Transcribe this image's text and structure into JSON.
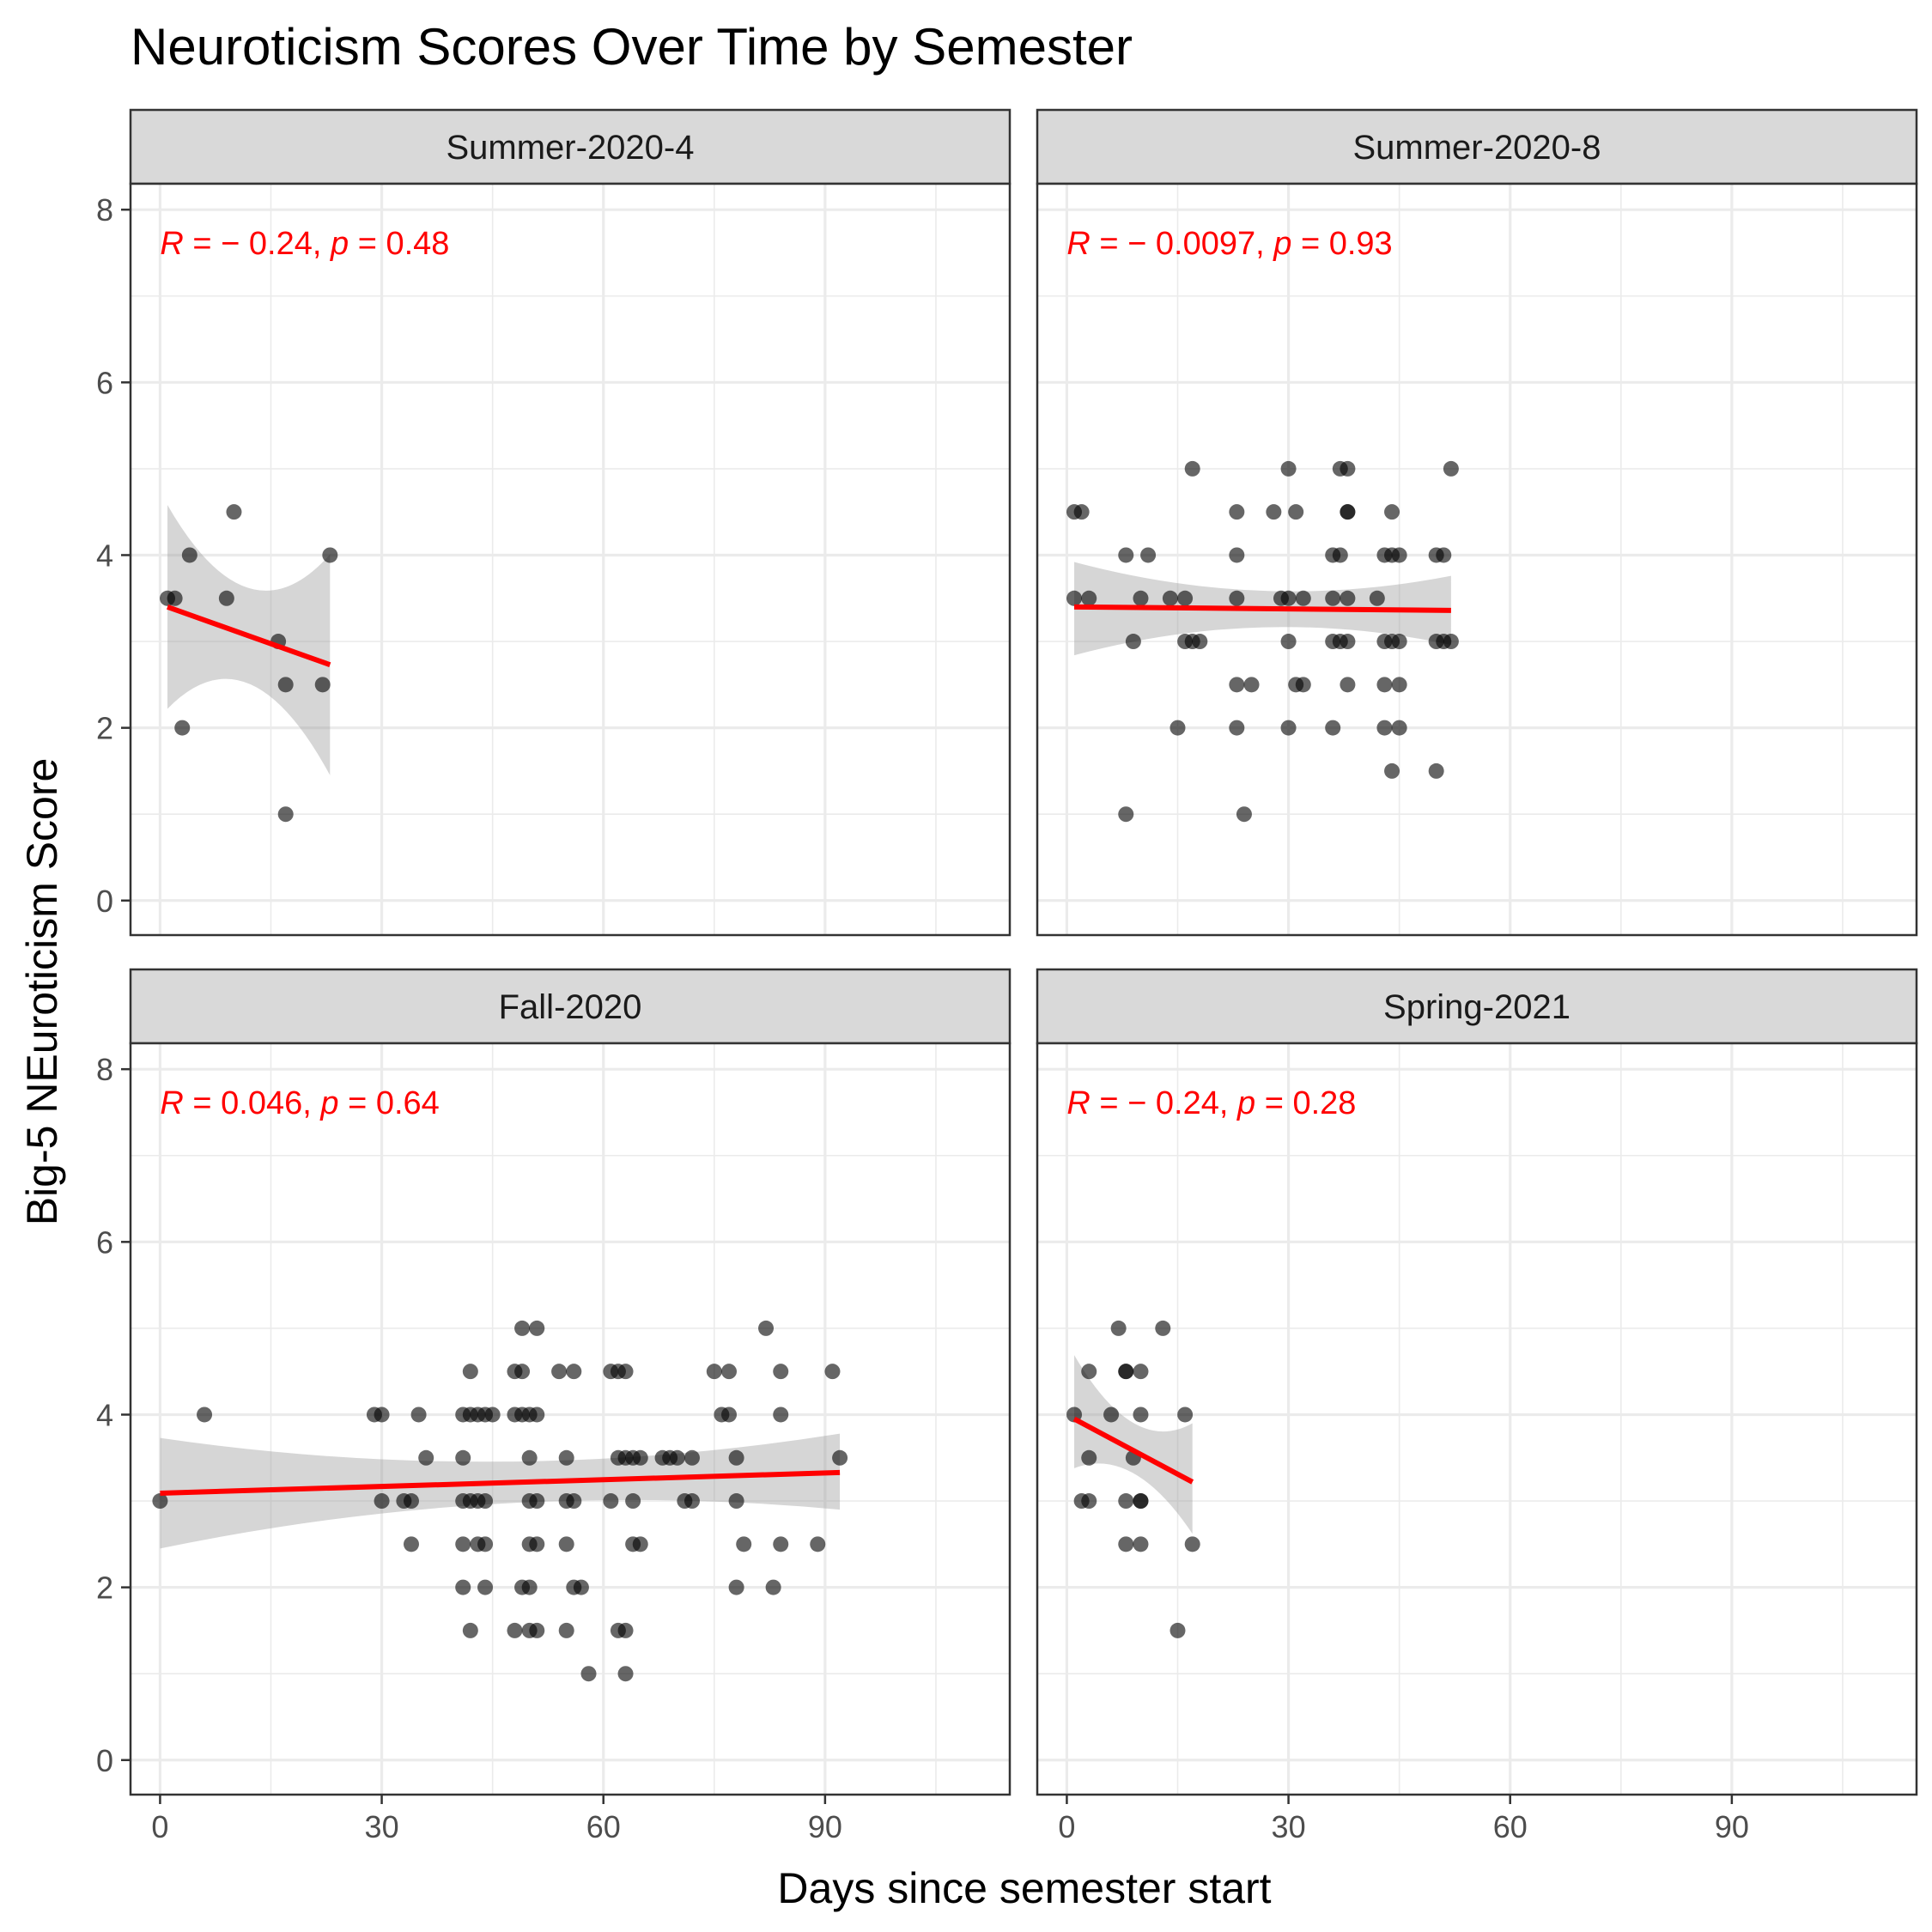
{
  "chart_data": {
    "type": "scatter",
    "title": "Neuroticism Scores Over Time by Semester",
    "xlabel": "Days since semester start",
    "ylabel": "Big-5 NEuroticism Score",
    "xlim": [
      -4,
      115
    ],
    "ylim": [
      -0.4,
      8.3
    ],
    "x_ticks": [
      "0",
      "30",
      "60",
      "90"
    ],
    "y_ticks": [
      "0",
      "2",
      "4",
      "6",
      "8"
    ],
    "grid": true,
    "facets": [
      {
        "name": "Summer-2020-4",
        "stat": {
          "r": "R = − 0.24,",
          "p": "p = 0.48"
        },
        "trend": {
          "x": [
            1,
            23
          ],
          "y": [
            3.4,
            2.73
          ]
        },
        "band": {
          "x": [
            1,
            23
          ],
          "lower": [
            2.22,
            1.45
          ],
          "upper": [
            4.58,
            4.01
          ]
        },
        "points": [
          [
            1,
            3.5
          ],
          [
            2,
            3.5
          ],
          [
            3,
            2
          ],
          [
            4,
            4
          ],
          [
            9,
            3.5
          ],
          [
            10,
            4.5
          ],
          [
            16,
            3
          ],
          [
            17,
            2.5
          ],
          [
            17,
            1
          ],
          [
            22,
            2.5
          ],
          [
            23,
            4
          ]
        ]
      },
      {
        "name": "Summer-2020-8",
        "stat": {
          "r": "R = − 0.0097,",
          "p": "p = 0.93"
        },
        "trend": {
          "x": [
            1,
            52
          ],
          "y": [
            3.4,
            3.36
          ]
        },
        "band": {
          "x": [
            1,
            52
          ],
          "lower": [
            2.84,
            2.96
          ],
          "upper": [
            3.92,
            3.76
          ]
        },
        "points": [
          [
            1,
            4.5
          ],
          [
            2,
            4.5
          ],
          [
            1,
            3.5
          ],
          [
            3,
            3.5
          ],
          [
            8,
            4
          ],
          [
            11,
            4
          ],
          [
            9,
            3
          ],
          [
            10,
            3.5
          ],
          [
            8,
            1
          ],
          [
            14,
            3.5
          ],
          [
            16,
            3.5
          ],
          [
            16,
            3
          ],
          [
            17,
            3
          ],
          [
            18,
            3
          ],
          [
            15,
            2
          ],
          [
            17,
            5
          ],
          [
            23,
            4.5
          ],
          [
            23,
            4
          ],
          [
            23,
            3.5
          ],
          [
            23,
            2.5
          ],
          [
            23,
            2
          ],
          [
            24,
            1
          ],
          [
            25,
            2.5
          ],
          [
            28,
            4.5
          ],
          [
            29,
            3.5
          ],
          [
            30,
            3.5
          ],
          [
            30,
            3
          ],
          [
            30,
            2
          ],
          [
            30,
            5
          ],
          [
            31,
            4.5
          ],
          [
            31,
            2.5
          ],
          [
            32,
            2.5
          ],
          [
            32,
            3.5
          ],
          [
            36,
            4
          ],
          [
            36,
            3.5
          ],
          [
            36,
            3
          ],
          [
            37,
            3
          ],
          [
            37,
            4
          ],
          [
            38,
            3.5
          ],
          [
            37,
            5
          ],
          [
            38,
            5
          ],
          [
            38,
            4.5
          ],
          [
            38,
            4.5
          ],
          [
            38,
            3
          ],
          [
            38,
            2.5
          ],
          [
            36,
            2
          ],
          [
            42,
            3.5
          ],
          [
            43,
            4
          ],
          [
            44,
            4
          ],
          [
            45,
            4
          ],
          [
            44,
            4.5
          ],
          [
            43,
            3
          ],
          [
            44,
            3
          ],
          [
            45,
            3
          ],
          [
            43,
            2.5
          ],
          [
            45,
            2.5
          ],
          [
            43,
            2
          ],
          [
            45,
            2
          ],
          [
            44,
            1.5
          ],
          [
            50,
            4
          ],
          [
            51,
            4
          ],
          [
            50,
            3
          ],
          [
            51,
            3
          ],
          [
            52,
            3
          ],
          [
            50,
            1.5
          ],
          [
            52,
            5
          ]
        ]
      },
      {
        "name": "Fall-2020",
        "stat": {
          "r": "R = 0.046,",
          "p": "p = 0.64"
        },
        "trend": {
          "x": [
            0,
            92
          ],
          "y": [
            3.09,
            3.33
          ]
        },
        "band": {
          "x": [
            0,
            92
          ],
          "lower": [
            2.45,
            2.9
          ],
          "upper": [
            3.73,
            3.78
          ]
        },
        "points": [
          [
            0,
            3
          ],
          [
            6,
            4
          ],
          [
            29,
            4
          ],
          [
            30,
            4
          ],
          [
            30,
            3
          ],
          [
            33,
            3
          ],
          [
            34,
            3
          ],
          [
            35,
            4
          ],
          [
            36,
            3.5
          ],
          [
            34,
            2.5
          ],
          [
            41,
            4
          ],
          [
            42,
            4
          ],
          [
            43,
            4
          ],
          [
            44,
            4
          ],
          [
            45,
            4
          ],
          [
            41,
            3.5
          ],
          [
            41,
            3
          ],
          [
            42,
            3
          ],
          [
            43,
            3
          ],
          [
            44,
            3
          ],
          [
            42,
            4.5
          ],
          [
            41,
            2.5
          ],
          [
            43,
            2.5
          ],
          [
            44,
            2.5
          ],
          [
            41,
            2
          ],
          [
            44,
            2
          ],
          [
            42,
            1.5
          ],
          [
            48,
            4.5
          ],
          [
            49,
            4.5
          ],
          [
            48,
            4
          ],
          [
            49,
            4
          ],
          [
            50,
            4
          ],
          [
            51,
            4
          ],
          [
            49,
            5
          ],
          [
            51,
            5
          ],
          [
            50,
            3.5
          ],
          [
            50,
            3
          ],
          [
            51,
            3
          ],
          [
            50,
            2.5
          ],
          [
            51,
            2.5
          ],
          [
            49,
            2
          ],
          [
            50,
            2
          ],
          [
            48,
            1.5
          ],
          [
            50,
            1.5
          ],
          [
            51,
            1.5
          ],
          [
            54,
            4.5
          ],
          [
            56,
            4.5
          ],
          [
            55,
            3.5
          ],
          [
            55,
            3
          ],
          [
            56,
            3
          ],
          [
            55,
            2.5
          ],
          [
            56,
            2
          ],
          [
            57,
            2
          ],
          [
            55,
            1.5
          ],
          [
            58,
            1
          ],
          [
            61,
            4.5
          ],
          [
            62,
            4.5
          ],
          [
            63,
            4.5
          ],
          [
            61,
            3
          ],
          [
            62,
            3.5
          ],
          [
            63,
            3.5
          ],
          [
            64,
            3.5
          ],
          [
            65,
            3.5
          ],
          [
            64,
            3
          ],
          [
            64,
            2.5
          ],
          [
            65,
            2.5
          ],
          [
            62,
            1.5
          ],
          [
            63,
            1.5
          ],
          [
            63,
            1
          ],
          [
            68,
            3.5
          ],
          [
            69,
            3.5
          ],
          [
            70,
            3.5
          ],
          [
            71,
            3
          ],
          [
            72,
            3
          ],
          [
            72,
            3.5
          ],
          [
            75,
            4.5
          ],
          [
            77,
            4.5
          ],
          [
            76,
            4
          ],
          [
            77,
            4
          ],
          [
            78,
            3.5
          ],
          [
            78,
            3
          ],
          [
            79,
            2.5
          ],
          [
            78,
            2
          ],
          [
            82,
            5
          ],
          [
            83,
            2
          ],
          [
            84,
            4.5
          ],
          [
            84,
            4
          ],
          [
            84,
            2.5
          ],
          [
            89,
            2.5
          ],
          [
            91,
            4.5
          ],
          [
            92,
            3.5
          ]
        ]
      },
      {
        "name": "Spring-2021",
        "stat": {
          "r": "R = − 0.24,",
          "p": "p = 0.28"
        },
        "trend": {
          "x": [
            1,
            17
          ],
          "y": [
            3.95,
            3.22
          ]
        },
        "band": {
          "x": [
            1,
            17
          ],
          "lower": [
            3.38,
            2.62
          ],
          "upper": [
            4.69,
            3.9
          ]
        },
        "points": [
          [
            1,
            4
          ],
          [
            2,
            3
          ],
          [
            3,
            3
          ],
          [
            3,
            4.5
          ],
          [
            3,
            3.5
          ],
          [
            6,
            4
          ],
          [
            7,
            5
          ],
          [
            8,
            4.5
          ],
          [
            8,
            4.5
          ],
          [
            8,
            3
          ],
          [
            8,
            2.5
          ],
          [
            9,
            3.5
          ],
          [
            10,
            4.5
          ],
          [
            10,
            4
          ],
          [
            10,
            3
          ],
          [
            10,
            3
          ],
          [
            10,
            2.5
          ],
          [
            13,
            5
          ],
          [
            15,
            1.5
          ],
          [
            16,
            4
          ],
          [
            17,
            2.5
          ]
        ]
      }
    ]
  },
  "colors": {
    "point": "#000000",
    "trend": "#ff0000",
    "band": "#999999",
    "strip_fill": "#d9d9d9",
    "grid": "#ebebeb",
    "stat_text": "#ff0000"
  }
}
